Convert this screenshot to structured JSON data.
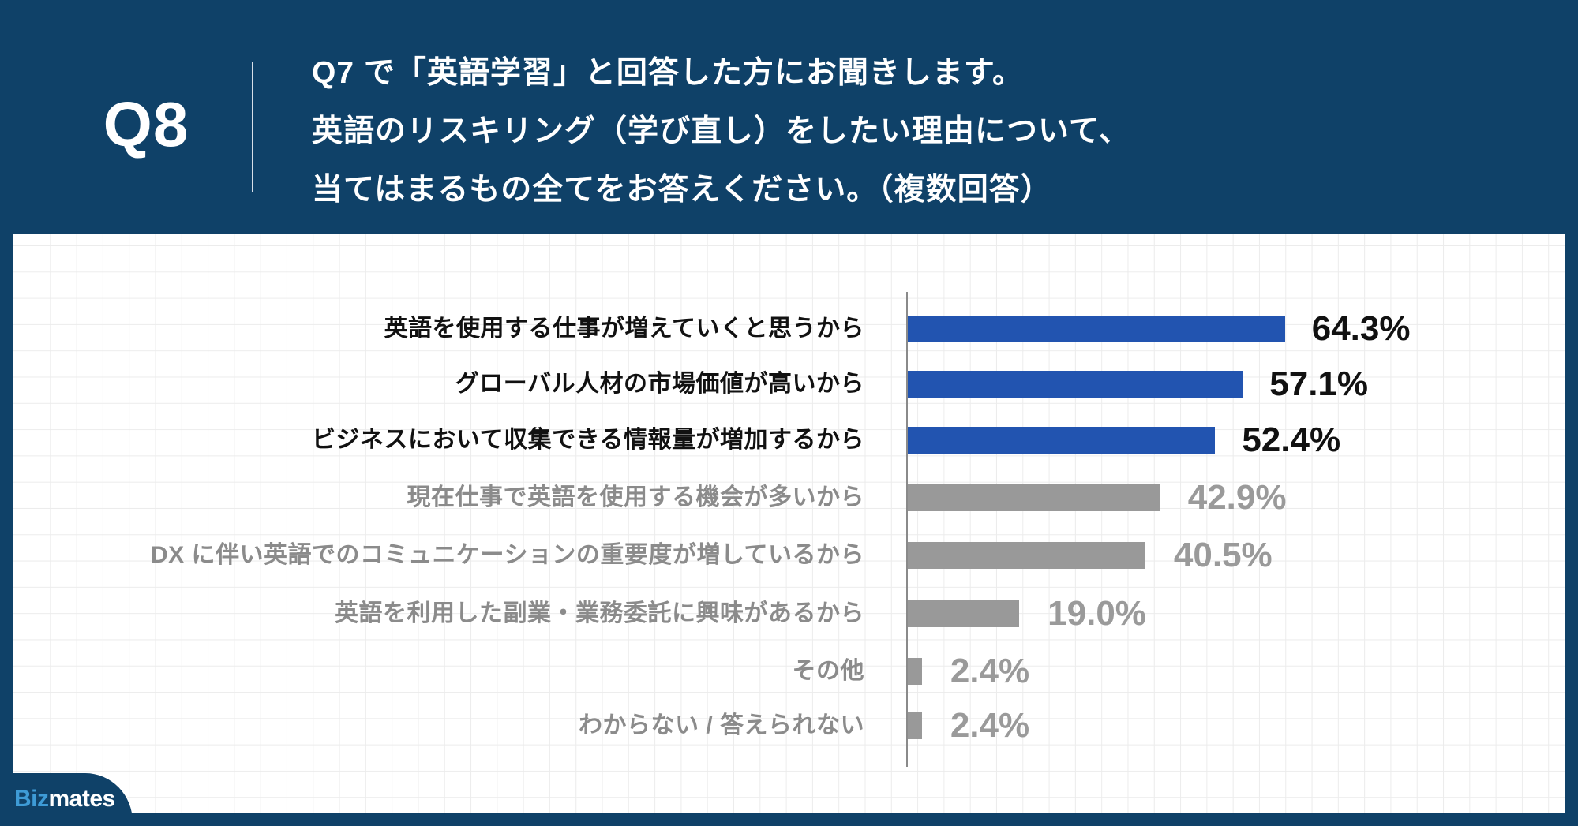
{
  "header": {
    "question_number": "Q8",
    "question_lines": [
      "Q7 で「英語学習」と回答した方にお聞きします。",
      "英語のリスキリング（学び直し）をしたい理由について、",
      "当てはまるもの全てをお答えください。（複数回答）"
    ]
  },
  "brand": {
    "logo_part1": "Biz",
    "logo_part2": "mates"
  },
  "colors": {
    "background_navy": "#0f4168",
    "highlight_bar": "#2254b0",
    "muted_bar": "#999999",
    "grid_line": "#ececec"
  },
  "rows": [
    {
      "label": "英語を使用する仕事が増えていくと思うから",
      "value": 64.3,
      "value_text": "64.3%",
      "highlight": true
    },
    {
      "label": "グローバル人材の市場価値が高いから",
      "value": 57.1,
      "value_text": "57.1%",
      "highlight": true
    },
    {
      "label": "ビジネスにおいて収集できる情報量が増加するから",
      "value": 52.4,
      "value_text": "52.4%",
      "highlight": true
    },
    {
      "label": "現在仕事で英語を使用する機会が多いから",
      "value": 42.9,
      "value_text": "42.9%",
      "highlight": false
    },
    {
      "label": "DX に伴い英語でのコミュニケーションの重要度が増しているから",
      "value": 40.5,
      "value_text": "40.5%",
      "highlight": false
    },
    {
      "label": "英語を利用した副業・業務委託に興味があるから",
      "value": 19.0,
      "value_text": "19.0%",
      "highlight": false
    },
    {
      "label": "その他",
      "value": 2.4,
      "value_text": "2.4%",
      "highlight": false
    },
    {
      "label": "わからない / 答えられない",
      "value": 2.4,
      "value_text": "2.4%",
      "highlight": false
    }
  ],
  "chart_data": {
    "type": "bar",
    "orientation": "horizontal",
    "title": "Q7 で「英語学習」と回答した方にお聞きします。英語のリスキリング（学び直し）をしたい理由について、当てはまるもの全てをお答えください。（複数回答）",
    "categories": [
      "英語を使用する仕事が増えていくと思うから",
      "グローバル人材の市場価値が高いから",
      "ビジネスにおいて収集できる情報量が増加するから",
      "現在仕事で英語を使用する機会が多いから",
      "DX に伴い英語でのコミュニケーションの重要度が増しているから",
      "英語を利用した副業・業務委託に興味があるから",
      "その他",
      "わからない / 答えられない"
    ],
    "values": [
      64.3,
      57.1,
      52.4,
      42.9,
      40.5,
      19.0,
      2.4,
      2.4
    ],
    "unit": "%",
    "highlighted_top_n": 3,
    "xlabel": "",
    "ylabel": "",
    "grid": true,
    "legend": null
  }
}
